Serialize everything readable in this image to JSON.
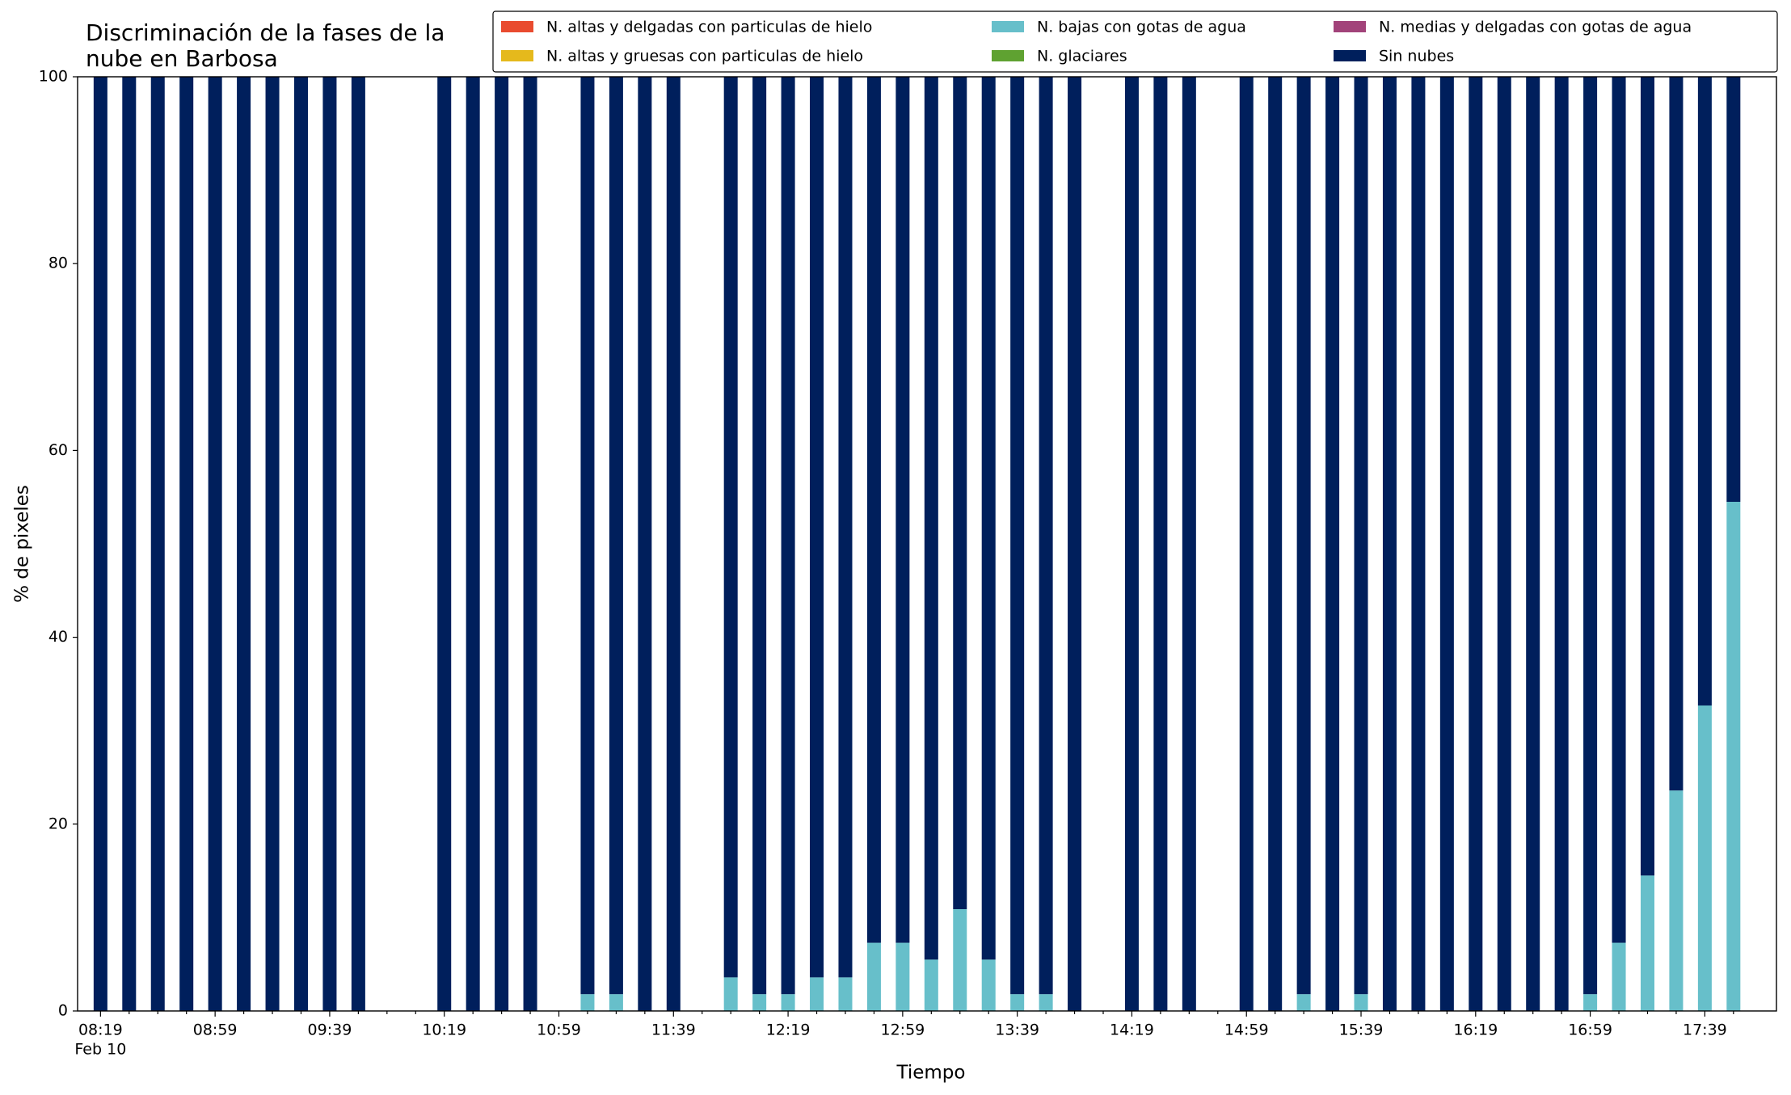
{
  "chart_data": {
    "type": "stacked_bar",
    "title": [
      "Discriminación de la fases de la",
      "nube en Barbosa"
    ],
    "x_label": "Tiempo",
    "y_label": "% de pixeles",
    "x": [
      "08:19",
      "08:29",
      "08:39",
      "08:49",
      "08:59",
      "09:09",
      "09:19",
      "09:29",
      "09:39",
      "09:49",
      "10:19",
      "10:29",
      "10:39",
      "10:49",
      "11:09",
      "11:19",
      "11:29",
      "11:39",
      "11:59",
      "12:09",
      "12:19",
      "12:29",
      "12:39",
      "12:49",
      "12:59",
      "13:09",
      "13:19",
      "13:29",
      "13:39",
      "13:49",
      "13:59",
      "14:19",
      "14:29",
      "14:39",
      "14:59",
      "15:09",
      "15:19",
      "15:29",
      "15:39",
      "15:49",
      "15:59",
      "16:09",
      "16:19",
      "16:29",
      "16:39",
      "16:49",
      "16:59",
      "17:09",
      "17:19",
      "17:29",
      "17:39",
      "17:49"
    ],
    "series": [
      {
        "name": "N. altas y delgadas con particulas de hielo",
        "color": "#e94b2f",
        "values": [
          0,
          0,
          0,
          0,
          0,
          0,
          0,
          0,
          0,
          0,
          0,
          0,
          0,
          0,
          0,
          0,
          0,
          0,
          0,
          0,
          0,
          0,
          0,
          0,
          0,
          0,
          0,
          0,
          0,
          0,
          0,
          0,
          0,
          0,
          0,
          0,
          0,
          0,
          0,
          0,
          0,
          0,
          0,
          0,
          0,
          0,
          0,
          0,
          0,
          0,
          0,
          0
        ]
      },
      {
        "name": "N. altas y gruesas con particulas de hielo",
        "color": "#e5b91c",
        "values": [
          0,
          0,
          0,
          0,
          0,
          0,
          0,
          0,
          0,
          0,
          0,
          0,
          0,
          0,
          0,
          0,
          0,
          0,
          0,
          0,
          0,
          0,
          0,
          0,
          0,
          0,
          0,
          0,
          0,
          0,
          0,
          0,
          0,
          0,
          0,
          0,
          0,
          0,
          0,
          0,
          0,
          0,
          0,
          0,
          0,
          0,
          0,
          0,
          0,
          0,
          0,
          0
        ]
      },
      {
        "name": "N. bajas con gotas de agua",
        "color": "#67bfca",
        "values": [
          0,
          0,
          0,
          0,
          0,
          0,
          0,
          0,
          0,
          0,
          0,
          0,
          0,
          0,
          1.8,
          1.8,
          0,
          0,
          3.6,
          1.8,
          1.8,
          3.6,
          3.6,
          7.3,
          7.3,
          5.5,
          10.9,
          5.5,
          1.8,
          1.8,
          0,
          0,
          0,
          0,
          0,
          0,
          1.8,
          0,
          1.8,
          0,
          0,
          0,
          0,
          0,
          0,
          0,
          1.8,
          7.3,
          14.5,
          23.6,
          32.7,
          54.5
        ]
      },
      {
        "name": "N. glaciares",
        "color": "#5fa231",
        "values": [
          0,
          0,
          0,
          0,
          0,
          0,
          0,
          0,
          0,
          0,
          0,
          0,
          0,
          0,
          0,
          0,
          0,
          0,
          0,
          0,
          0,
          0,
          0,
          0,
          0,
          0,
          0,
          0,
          0,
          0,
          0,
          0,
          0,
          0,
          0,
          0,
          0,
          0,
          0,
          0,
          0,
          0,
          0,
          0,
          0,
          0,
          0,
          0,
          0,
          0,
          0,
          0
        ]
      },
      {
        "name": "N. medias y delgadas con gotas de agua",
        "color": "#a2437a",
        "values": [
          0,
          0,
          0,
          0,
          0,
          0,
          0,
          0,
          0,
          0,
          0,
          0,
          0,
          0,
          0,
          0,
          0,
          0,
          0,
          0,
          0,
          0,
          0,
          0,
          0,
          0,
          0,
          0,
          0,
          0,
          0,
          0,
          0,
          0,
          0,
          0,
          0,
          0,
          0,
          0,
          0,
          0,
          0,
          0,
          0,
          0,
          0,
          0,
          0,
          0,
          0,
          0
        ]
      },
      {
        "name": "Sin nubes",
        "color": "#001f5c",
        "values": [
          100,
          100,
          100,
          100,
          100,
          100,
          100,
          100,
          100,
          100,
          100,
          100,
          100,
          100,
          98.2,
          98.2,
          100,
          100,
          96.4,
          98.2,
          98.2,
          96.4,
          96.4,
          92.7,
          92.7,
          94.5,
          89.1,
          94.5,
          98.2,
          98.2,
          100,
          100,
          100,
          100,
          100,
          100,
          98.2,
          100,
          98.2,
          100,
          100,
          100,
          100,
          100,
          100,
          100,
          98.2,
          92.7,
          85.5,
          76.4,
          67.3,
          45.5
        ]
      }
    ],
    "xlim": [
      "08:11",
      "18:04"
    ],
    "xticks": [
      "08:19",
      "08:59",
      "09:39",
      "10:19",
      "10:59",
      "11:39",
      "12:19",
      "12:59",
      "13:39",
      "14:19",
      "14:59",
      "15:39",
      "16:19",
      "16:59",
      "17:39"
    ],
    "xtick_date": "Feb 10",
    "xminorticks": [
      "08:29",
      "08:39",
      "08:49",
      "09:09",
      "09:19",
      "09:29",
      "09:49",
      "09:59",
      "10:09",
      "10:29",
      "10:39",
      "10:49",
      "11:09",
      "11:19",
      "11:29",
      "11:49",
      "11:59",
      "12:09",
      "12:29",
      "12:39",
      "12:49",
      "13:09",
      "13:19",
      "13:29",
      "13:49",
      "13:59",
      "14:09",
      "14:29",
      "14:39",
      "14:49",
      "15:09",
      "15:19",
      "15:29",
      "15:49",
      "15:59",
      "16:09",
      "16:29",
      "16:39",
      "16:49",
      "17:09",
      "17:19",
      "17:29",
      "17:49"
    ],
    "ylim": [
      0,
      100
    ],
    "yticks": [
      0,
      20,
      40,
      60,
      80,
      100
    ],
    "grid": false,
    "legend_position": "top-right"
  }
}
